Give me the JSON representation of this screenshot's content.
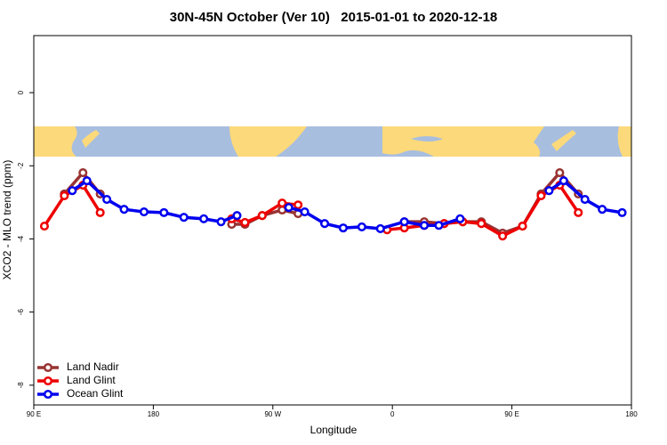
{
  "chart_data": {
    "type": "line",
    "title": "30N-45N October (Ver 10)   2015-01-01 to 2020-12-18",
    "xlabel": "Longitude",
    "ylabel": "XCO2 - MLO trend (ppm)",
    "xlim": [
      90,
      540
    ],
    "ylim": [
      -8.54,
      1.56
    ],
    "xticks": [
      {
        "value": 90,
        "label": "90 E"
      },
      {
        "value": 180,
        "label": "180"
      },
      {
        "value": 270,
        "label": "90 W"
      },
      {
        "value": 360,
        "label": "0"
      },
      {
        "value": 450,
        "label": "90 E"
      },
      {
        "value": 540,
        "label": "180"
      }
    ],
    "yticks": [
      0,
      -2,
      -4,
      -6,
      -8
    ],
    "legend": "bottom-left",
    "series": [
      {
        "name": "Land Nadir",
        "color": "#993333",
        "x": [
          113,
          127,
          140,
          null,
          239,
          249,
          262,
          277,
          289,
          null,
          369,
          384,
          399,
          413,
          427,
          443,
          458,
          472,
          486,
          500
        ],
        "values": [
          -2.77,
          -2.19,
          -2.77,
          null,
          -3.6,
          -3.6,
          -3.36,
          -3.21,
          -3.31,
          null,
          -3.53,
          -3.53,
          -3.58,
          -3.53,
          -3.53,
          -3.84,
          -3.65,
          -2.77,
          -2.19,
          -2.77
        ]
      },
      {
        "name": "Land Glint",
        "color": "#ee0000",
        "x": [
          98,
          113,
          127,
          140,
          null,
          239,
          249,
          262,
          277,
          289,
          null,
          356,
          369,
          384,
          399,
          413,
          427,
          443,
          458,
          472,
          486,
          500
        ],
        "values": [
          -3.65,
          -2.82,
          -2.53,
          -3.28,
          null,
          -3.45,
          -3.55,
          -3.36,
          -3.02,
          -3.07,
          null,
          -3.75,
          -3.7,
          -3.63,
          -3.58,
          -3.53,
          -3.58,
          -3.92,
          -3.65,
          -2.82,
          -2.53,
          -3.28
        ]
      },
      {
        "name": "Ocean Glint",
        "color": "#0000ee",
        "x": [
          119,
          130,
          145,
          158,
          173,
          188,
          203,
          218,
          231,
          243,
          null,
          282,
          294,
          309,
          323,
          337,
          351,
          369,
          384,
          395,
          411,
          null,
          478,
          489,
          505,
          518,
          533
        ],
        "values": [
          -2.68,
          -2.41,
          -2.92,
          -3.19,
          -3.26,
          -3.28,
          -3.41,
          -3.45,
          -3.53,
          -3.36,
          null,
          -3.14,
          -3.26,
          -3.58,
          -3.7,
          -3.67,
          -3.72,
          -3.53,
          -3.63,
          -3.63,
          -3.45,
          null,
          -2.68,
          -2.41,
          -2.92,
          -3.19,
          -3.28
        ]
      }
    ]
  }
}
